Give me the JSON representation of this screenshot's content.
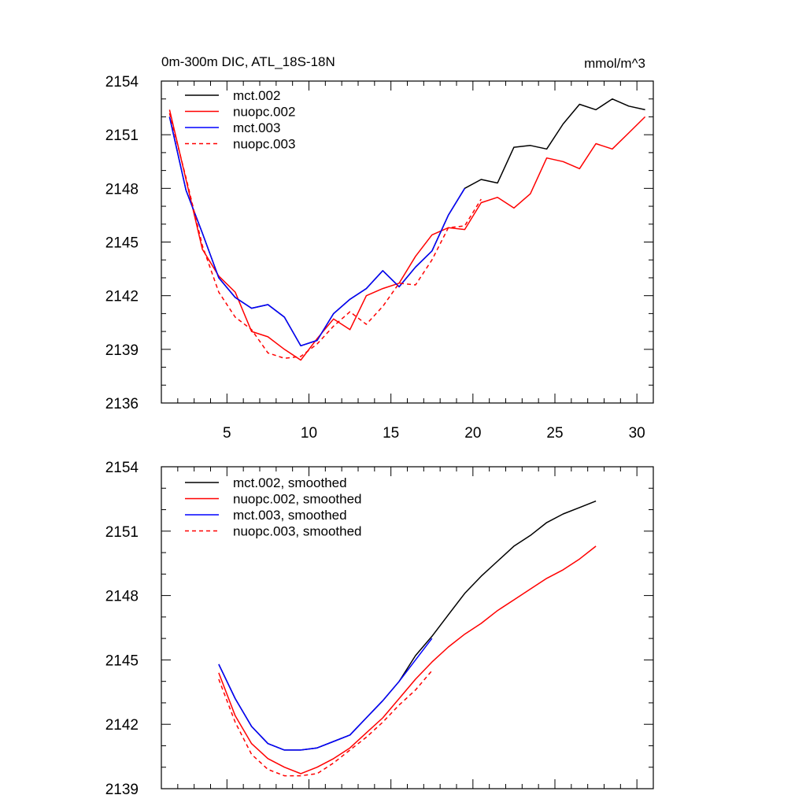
{
  "figure": {
    "title_left": "0m-300m DIC, ATL_18S-18N",
    "title_right": "mmol/m^3"
  },
  "chart_data": [
    {
      "type": "line",
      "name": "raw",
      "title": "0m-300m DIC, ATL_18S-18N",
      "units": "mmol/m^3",
      "xlabel": "",
      "ylabel": "",
      "xlim": [
        1,
        31
      ],
      "ylim": [
        2136,
        2154
      ],
      "yticks": [
        2136,
        2139,
        2142,
        2145,
        2148,
        2151,
        2154
      ],
      "yticklabels": [
        "2136",
        "2139",
        "2142",
        "2145",
        "2148",
        "2151",
        "2154"
      ],
      "xticks": [
        5,
        10,
        15,
        20,
        25,
        30
      ],
      "xticklabels": [
        "5",
        "10",
        "15",
        "20",
        "25",
        "30"
      ],
      "legend_position": "top-left",
      "series": [
        {
          "name": "mct.002",
          "color": "#000000",
          "dash": "solid",
          "x": [
            1.5,
            2.5,
            3.5,
            4.5,
            5.5,
            6.5,
            7.5,
            8.5,
            9.5,
            10.5,
            11.5,
            12.5,
            13.5,
            14.5,
            15.5,
            16.5,
            17.5,
            18.5,
            19.5,
            20.5,
            21.5,
            22.5,
            23.5,
            24.5,
            25.5,
            26.5,
            27.5,
            28.5,
            29.5,
            30.5
          ],
          "values": [
            2152.0,
            2147.9,
            2145.5,
            2143.0,
            2141.9,
            2141.3,
            2141.5,
            2140.8,
            2139.2,
            2139.5,
            2141.0,
            2141.8,
            2142.4,
            2143.4,
            2142.5,
            2143.6,
            2144.5,
            2146.5,
            2148.0,
            2148.5,
            2148.3,
            2150.3,
            2150.4,
            2150.2,
            2151.6,
            2152.7,
            2152.4,
            2153.0,
            2152.6,
            2152.4
          ]
        },
        {
          "name": "nuopc.002",
          "color": "#ff0000",
          "dash": "solid",
          "x": [
            1.5,
            2.5,
            3.5,
            4.5,
            5.5,
            6.5,
            7.5,
            8.5,
            9.5,
            10.5,
            11.5,
            12.5,
            13.5,
            14.5,
            15.5,
            16.5,
            17.5,
            18.5,
            19.5,
            20.5,
            21.5,
            22.5,
            23.5,
            24.5,
            25.5,
            26.5,
            27.5,
            28.5,
            29.5,
            30.5
          ],
          "values": [
            2152.4,
            2148.5,
            2144.6,
            2143.1,
            2142.2,
            2140.0,
            2139.7,
            2139.0,
            2138.4,
            2139.6,
            2140.7,
            2140.1,
            2142.0,
            2142.4,
            2142.7,
            2144.2,
            2145.4,
            2145.8,
            2145.7,
            2147.2,
            2147.5,
            2146.9,
            2147.7,
            2149.7,
            2149.5,
            2149.1,
            2150.5,
            2150.2,
            2151.1,
            2152.0
          ]
        },
        {
          "name": "mct.003",
          "color": "#0000ff",
          "dash": "solid",
          "x": [
            1.5,
            2.5,
            3.5,
            4.5,
            5.5,
            6.5,
            7.5,
            8.5,
            9.5,
            10.5,
            11.5,
            12.5,
            13.5,
            14.5,
            15.5,
            16.5,
            17.5,
            18.5,
            19.5
          ],
          "values": [
            2152.0,
            2147.9,
            2145.5,
            2143.0,
            2141.9,
            2141.3,
            2141.5,
            2140.8,
            2139.2,
            2139.5,
            2141.0,
            2141.8,
            2142.4,
            2143.4,
            2142.5,
            2143.6,
            2144.5,
            2146.5,
            2148.0
          ]
        },
        {
          "name": "nuopc.003",
          "color": "#ff0000",
          "dash": "dashed",
          "x": [
            1.5,
            2.5,
            3.5,
            4.5,
            5.5,
            6.5,
            7.5,
            8.5,
            9.5,
            10.5,
            11.5,
            12.5,
            13.5,
            14.5,
            15.5,
            16.5,
            17.5,
            18.5,
            19.5,
            20.5
          ],
          "values": [
            2152.2,
            2148.6,
            2144.8,
            2142.2,
            2140.8,
            2140.1,
            2138.8,
            2138.5,
            2138.6,
            2139.3,
            2140.3,
            2141.1,
            2140.4,
            2141.4,
            2142.7,
            2142.6,
            2144.0,
            2145.8,
            2145.9,
            2147.4
          ]
        }
      ]
    },
    {
      "type": "line",
      "name": "smoothed",
      "title": "",
      "xlabel": "",
      "ylabel": "",
      "xlim": [
        1,
        31
      ],
      "ylim": [
        2139,
        2154
      ],
      "yticks": [
        2139,
        2142,
        2145,
        2148,
        2151,
        2154
      ],
      "yticklabels": [
        "2139",
        "2142",
        "2145",
        "2148",
        "2151",
        "2154"
      ],
      "xticks": [
        5,
        10,
        15,
        20,
        25,
        30
      ],
      "xticklabels": [],
      "legend_position": "top-left",
      "series": [
        {
          "name": "mct.002, smoothed",
          "color": "#000000",
          "dash": "solid",
          "x": [
            4.5,
            5.5,
            6.5,
            7.5,
            8.5,
            9.5,
            10.5,
            11.5,
            12.5,
            13.5,
            14.5,
            15.5,
            16.5,
            17.5,
            18.5,
            19.5,
            20.5,
            21.5,
            22.5,
            23.5,
            24.5,
            25.5,
            26.5,
            27.5
          ],
          "values": [
            2144.8,
            2143.2,
            2141.9,
            2141.1,
            2140.8,
            2140.8,
            2140.9,
            2141.2,
            2141.5,
            2142.3,
            2143.1,
            2144.0,
            2145.2,
            2146.1,
            2147.1,
            2148.1,
            2148.9,
            2149.6,
            2150.3,
            2150.8,
            2151.4,
            2151.8,
            2152.1,
            2152.4
          ]
        },
        {
          "name": "nuopc.002, smoothed",
          "color": "#ff0000",
          "dash": "solid",
          "x": [
            4.5,
            5.5,
            6.5,
            7.5,
            8.5,
            9.5,
            10.5,
            11.5,
            12.5,
            13.5,
            14.5,
            15.5,
            16.5,
            17.5,
            18.5,
            19.5,
            20.5,
            21.5,
            22.5,
            23.5,
            24.5,
            25.5,
            26.5,
            27.5
          ],
          "values": [
            2144.4,
            2142.4,
            2141.1,
            2140.4,
            2140.0,
            2139.7,
            2140.0,
            2140.4,
            2140.9,
            2141.6,
            2142.3,
            2143.2,
            2144.1,
            2144.9,
            2145.6,
            2146.2,
            2146.7,
            2147.3,
            2147.8,
            2148.3,
            2148.8,
            2149.2,
            2149.7,
            2150.3
          ]
        },
        {
          "name": "mct.003, smoothed",
          "color": "#0000ff",
          "dash": "solid",
          "x": [
            4.5,
            5.5,
            6.5,
            7.5,
            8.5,
            9.5,
            10.5,
            11.5,
            12.5,
            13.5,
            14.5,
            15.5,
            16.5,
            17.5
          ],
          "values": [
            2144.8,
            2143.2,
            2141.9,
            2141.1,
            2140.8,
            2140.8,
            2140.9,
            2141.2,
            2141.5,
            2142.3,
            2143.1,
            2144.0,
            2145.0,
            2146.0
          ]
        },
        {
          "name": "nuopc.003, smoothed",
          "color": "#ff0000",
          "dash": "dashed",
          "x": [
            4.5,
            5.5,
            6.5,
            7.5,
            8.5,
            9.5,
            10.5,
            11.5,
            12.5,
            13.5,
            14.5,
            15.5,
            16.5,
            17.5
          ],
          "values": [
            2144.1,
            2142.1,
            2140.6,
            2139.9,
            2139.6,
            2139.6,
            2139.7,
            2140.2,
            2140.8,
            2141.4,
            2142.1,
            2142.9,
            2143.6,
            2144.5
          ]
        }
      ]
    }
  ]
}
